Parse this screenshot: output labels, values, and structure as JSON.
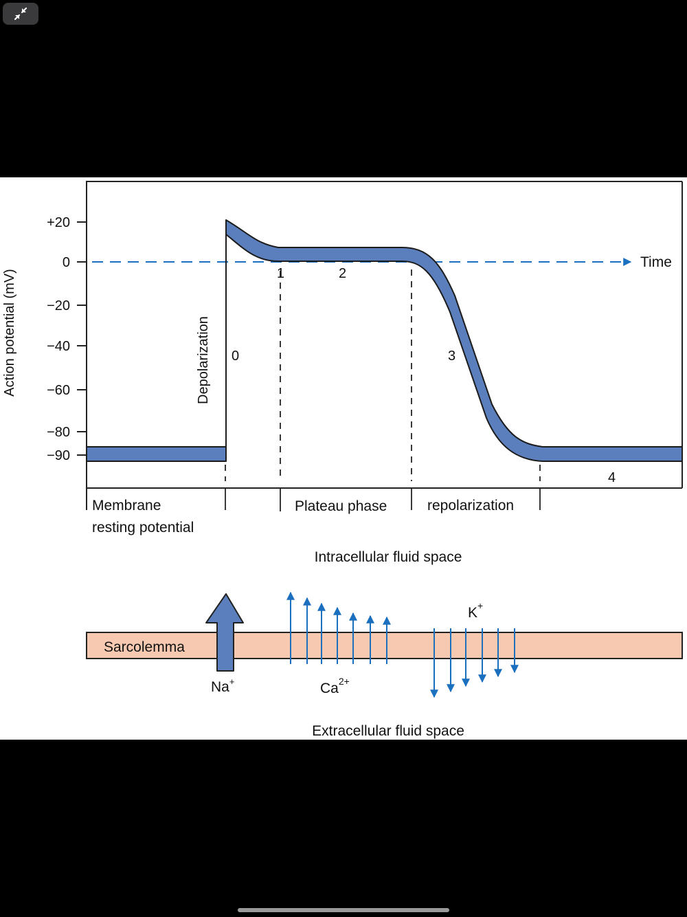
{
  "colors": {
    "curve_fill": "#5b7fbd",
    "curve_stroke": "#1c1c1c",
    "dashed_axis": "#1b6fbf",
    "ion_arrow": "#1b6fbf",
    "na_arrow": "#5b7fbd",
    "membrane": "#f7c9b1",
    "background_screen": "#000000",
    "figure_background": "#ffffff"
  },
  "icons": {
    "collapse": "collapse-arrows-icon"
  },
  "graph": {
    "y_axis_label": "Action potential (mV)",
    "y_ticks": [
      "+20",
      "0",
      "−20",
      "−40",
      "−60",
      "−80",
      "−90"
    ],
    "time_label": "Time",
    "depolarization_label": "Depolarization",
    "phase_numbers": [
      "0",
      "1",
      "2",
      "3",
      "4"
    ],
    "bottom_labels": {
      "membrane_line1": "Membrane",
      "membrane_line2": "resting potential",
      "plateau": "Plateau phase",
      "repolarization": "repolarization"
    }
  },
  "membrane": {
    "intracellular": "Intracellular fluid space",
    "extracellular": "Extracellular fluid space",
    "sarcolemma": "Sarcolemma",
    "na_base": "Na",
    "na_sup": "+",
    "ca_base": "Ca",
    "ca_sup": "2+",
    "k_base": "K",
    "k_sup": "+"
  }
}
